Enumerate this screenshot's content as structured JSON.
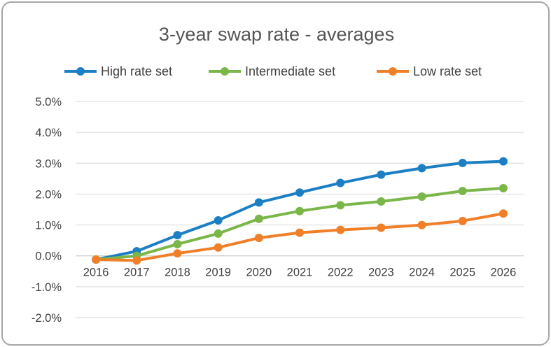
{
  "chart_data": {
    "type": "line",
    "title": "3-year swap rate - averages",
    "xlabel": "",
    "ylabel": "",
    "categories": [
      "2016",
      "2017",
      "2018",
      "2019",
      "2020",
      "2021",
      "2022",
      "2023",
      "2024",
      "2025",
      "2026"
    ],
    "ylim": [
      -2.0,
      5.0
    ],
    "yticks": [
      "5.0%",
      "4.0%",
      "3.0%",
      "2.0%",
      "1.0%",
      "0.0%",
      "-1.0%",
      "-2.0%"
    ],
    "ytick_values": [
      5.0,
      4.0,
      3.0,
      2.0,
      1.0,
      0.0,
      -1.0,
      -2.0
    ],
    "grid": true,
    "legend_position": "top",
    "series": [
      {
        "name": "High rate set",
        "color": "#1c7fc4",
        "values": [
          -0.12,
          0.15,
          0.67,
          1.15,
          1.73,
          2.05,
          2.36,
          2.63,
          2.84,
          3.01,
          3.06
        ]
      },
      {
        "name": "Intermediate set",
        "color": "#7ab648",
        "values": [
          -0.12,
          0.0,
          0.38,
          0.72,
          1.2,
          1.45,
          1.64,
          1.76,
          1.92,
          2.1,
          2.19
        ]
      },
      {
        "name": "Low rate set",
        "color": "#f07f29",
        "values": [
          -0.12,
          -0.15,
          0.08,
          0.27,
          0.58,
          0.75,
          0.84,
          0.91,
          1.0,
          1.13,
          1.37
        ]
      }
    ]
  }
}
